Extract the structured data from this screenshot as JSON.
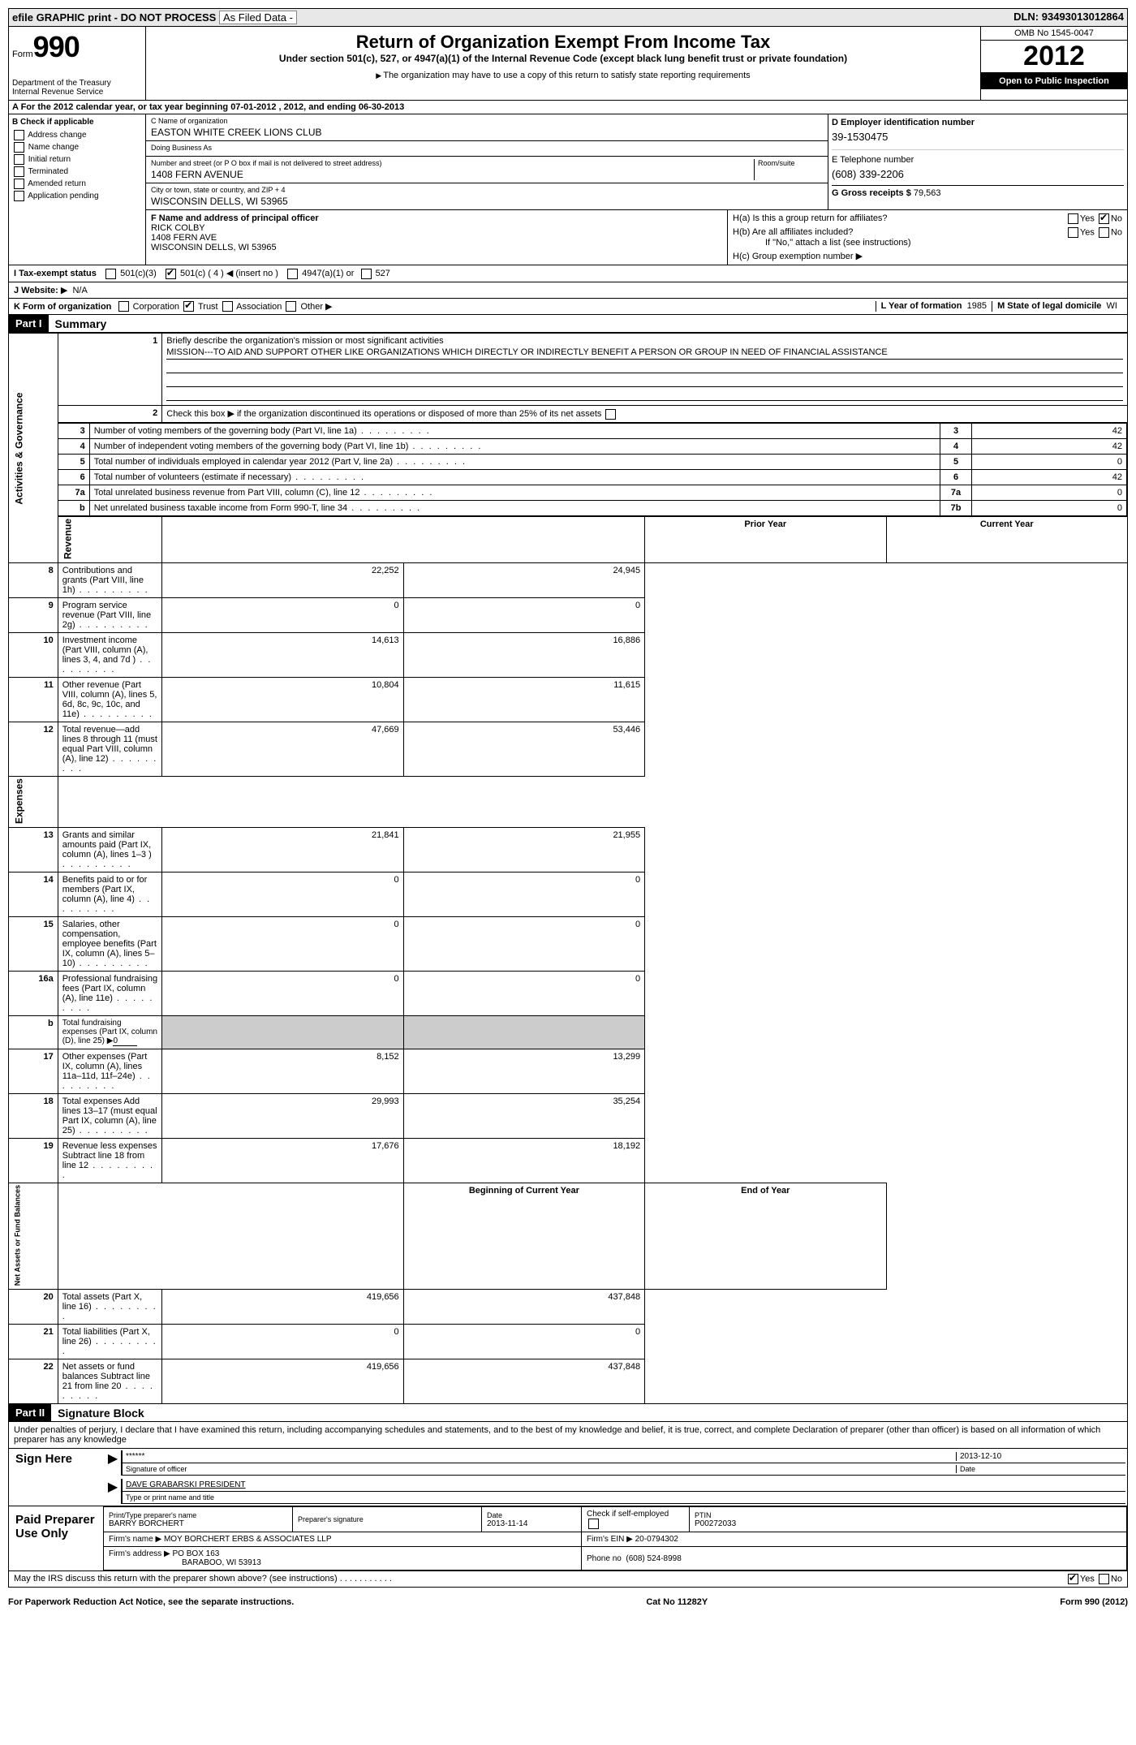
{
  "topbar": {
    "efile_label": "efile GRAPHIC print - DO NOT PROCESS",
    "asfiled_label": "As Filed Data -",
    "asfiled_value": "",
    "dln_label": "DLN:",
    "dln_value": "93493013012864"
  },
  "header": {
    "form_label": "Form",
    "form_number": "990",
    "dept": "Department of the Treasury",
    "irs": "Internal Revenue Service",
    "title": "Return of Organization Exempt From Income Tax",
    "subtitle": "Under section 501(c), 527, or 4947(a)(1) of the Internal Revenue Code (except black lung benefit trust or private foundation)",
    "note": "The organization may have to use a copy of this return to satisfy state reporting requirements",
    "omb": "OMB No 1545-0047",
    "year": "2012",
    "inspection": "Open to Public Inspection"
  },
  "rowA": "A  For the 2012 calendar year, or tax year beginning 07-01-2012    , 2012, and ending 06-30-2013",
  "sectionB": {
    "label": "B  Check if applicable",
    "items": [
      "Address change",
      "Name change",
      "Initial return",
      "Terminated",
      "Amended return",
      "Application pending"
    ]
  },
  "sectionC": {
    "name_label": "C Name of organization",
    "name": "EASTON WHITE CREEK LIONS CLUB",
    "dba_label": "Doing Business As",
    "dba": "",
    "street_label": "Number and street (or P O  box if mail is not delivered to street address)",
    "room_label": "Room/suite",
    "street": "1408 FERN AVENUE",
    "city_label": "City or town, state or country, and ZIP + 4",
    "city": "WISCONSIN DELLS, WI  53965"
  },
  "sectionD": {
    "label": "D Employer identification number",
    "value": "39-1530475"
  },
  "sectionE": {
    "label": "E Telephone number",
    "value": "(608) 339-2206"
  },
  "sectionG": {
    "label": "G Gross receipts $",
    "value": "79,563"
  },
  "sectionF": {
    "label": "F  Name and address of principal officer",
    "name": "RICK COLBY",
    "street": "1408 FERN AVE",
    "city": "WISCONSIN DELLS, WI  53965"
  },
  "sectionH": {
    "ha_label": "H(a)  Is this a group return for affiliates?",
    "ha_yes": false,
    "ha_no": true,
    "hb_label": "H(b)  Are all affiliates included?",
    "hb_note": "If \"No,\" attach a list  (see instructions)",
    "hc_label": "H(c)  Group exemption number"
  },
  "rowI": {
    "label": "I  Tax-exempt status",
    "c3": false,
    "c_other": true,
    "c_num": "4",
    "insert_note": "(insert no )",
    "opt_4947": "4947(a)(1) or",
    "opt_527": "527"
  },
  "rowJ": {
    "label": "J  Website:",
    "value": "N/A"
  },
  "rowK": {
    "label": "K Form of organization",
    "corp": false,
    "trust": true,
    "assoc": false,
    "other": false,
    "L_label": "L Year of formation",
    "L_value": "1985",
    "M_label": "M State of legal domicile",
    "M_value": "WI"
  },
  "partI": {
    "header": "Part I",
    "title": "Summary",
    "line1_label": "Briefly describe the organization's mission or most significant activities",
    "line1_text": "MISSION---TO AID AND SUPPORT OTHER LIKE ORGANIZATIONS WHICH DIRECTLY OR INDIRECTLY BENEFIT A PERSON OR GROUP IN NEED OF FINANCIAL ASSISTANCE",
    "line2": "Check this box ▶  if the organization discontinued its operations or disposed of more than 25% of its net assets",
    "gov_rows": [
      {
        "n": "3",
        "t": "Number of voting members of the governing body (Part VI, line 1a)",
        "c": "3",
        "v": "42"
      },
      {
        "n": "4",
        "t": "Number of independent voting members of the governing body (Part VI, line 1b)",
        "c": "4",
        "v": "42"
      },
      {
        "n": "5",
        "t": "Total number of individuals employed in calendar year 2012 (Part V, line 2a)",
        "c": "5",
        "v": "0"
      },
      {
        "n": "6",
        "t": "Total number of volunteers (estimate if necessary)",
        "c": "6",
        "v": "42"
      },
      {
        "n": "7a",
        "t": "Total unrelated business revenue from Part VIII, column (C), line 12",
        "c": "7a",
        "v": "0"
      },
      {
        "n": "b",
        "t": "Net unrelated business taxable income from Form 990-T, line 34",
        "c": "7b",
        "v": "0"
      }
    ],
    "col_headers": {
      "prior": "Prior Year",
      "current": "Current Year"
    },
    "revenue_label": "Revenue",
    "revenue_rows": [
      {
        "n": "8",
        "t": "Contributions and grants (Part VIII, line 1h)",
        "p": "22,252",
        "c": "24,945"
      },
      {
        "n": "9",
        "t": "Program service revenue (Part VIII, line 2g)",
        "p": "0",
        "c": "0"
      },
      {
        "n": "10",
        "t": "Investment income (Part VIII, column (A), lines 3, 4, and 7d )",
        "p": "14,613",
        "c": "16,886"
      },
      {
        "n": "11",
        "t": "Other revenue (Part VIII, column (A), lines 5, 6d, 8c, 9c, 10c, and 11e)",
        "p": "10,804",
        "c": "11,615"
      },
      {
        "n": "12",
        "t": "Total revenue—add lines 8 through 11 (must equal Part VIII, column (A), line 12)",
        "p": "47,669",
        "c": "53,446"
      }
    ],
    "expenses_label": "Expenses",
    "expenses_rows": [
      {
        "n": "13",
        "t": "Grants and similar amounts paid (Part IX, column (A), lines 1–3 )",
        "p": "21,841",
        "c": "21,955"
      },
      {
        "n": "14",
        "t": "Benefits paid to or for members (Part IX, column (A), line 4)",
        "p": "0",
        "c": "0"
      },
      {
        "n": "15",
        "t": "Salaries, other compensation, employee benefits (Part IX, column (A), lines 5–10)",
        "p": "0",
        "c": "0"
      },
      {
        "n": "16a",
        "t": "Professional fundraising fees (Part IX, column (A), line 11e)",
        "p": "0",
        "c": "0"
      },
      {
        "n": "b",
        "t": "Total fundraising expenses (Part IX, column (D), line 25) ▶",
        "sub": "0",
        "p": "",
        "c": ""
      },
      {
        "n": "17",
        "t": "Other expenses (Part IX, column (A), lines 11a–11d, 11f–24e)",
        "p": "8,152",
        "c": "13,299"
      },
      {
        "n": "18",
        "t": "Total expenses  Add lines 13–17 (must equal Part IX, column (A), line 25)",
        "p": "29,993",
        "c": "35,254"
      },
      {
        "n": "19",
        "t": "Revenue less expenses  Subtract line 18 from line 12",
        "p": "17,676",
        "c": "18,192"
      }
    ],
    "net_label": "Net Assets or Fund Balances",
    "net_headers": {
      "begin": "Beginning of Current Year",
      "end": "End of Year"
    },
    "net_rows": [
      {
        "n": "20",
        "t": "Total assets (Part X, line 16)",
        "p": "419,656",
        "c": "437,848"
      },
      {
        "n": "21",
        "t": "Total liabilities (Part X, line 26)",
        "p": "0",
        "c": "0"
      },
      {
        "n": "22",
        "t": "Net assets or fund balances  Subtract line 21 from line 20",
        "p": "419,656",
        "c": "437,848"
      }
    ]
  },
  "partII": {
    "header": "Part II",
    "title": "Signature Block",
    "perjury": "Under penalties of perjury, I declare that I have examined this return, including accompanying schedules and statements, and to the best of my knowledge and belief, it is true, correct, and complete  Declaration of preparer (other than officer) is based on all information of which preparer has any knowledge",
    "sign_here": "Sign Here",
    "sig_stars": "******",
    "sig_date": "2013-12-10",
    "sig_officer_label": "Signature of officer",
    "date_label": "Date",
    "officer_name": "DAVE GRABARSKI PRESIDENT",
    "officer_name_label": "Type or print name and title",
    "paid_label": "Paid Preparer Use Only",
    "prep_name_label": "Print/Type preparer's name",
    "prep_name": "BARRY BORCHERT",
    "prep_sig_label": "Preparer's signature",
    "prep_date": "2013-11-14",
    "self_emp_label": "Check  if self-employed",
    "ptin_label": "PTIN",
    "ptin": "P00272033",
    "firm_name_label": "Firm's name  ▶",
    "firm_name": "MOY BORCHERT ERBS & ASSOCIATES LLP",
    "firm_ein_label": "Firm's EIN ▶",
    "firm_ein": "20-0794302",
    "firm_addr_label": "Firm's address ▶",
    "firm_addr1": "PO BOX 163",
    "firm_addr2": "BARABOO, WI  53913",
    "phone_label": "Phone no",
    "phone": "(608) 524-8998",
    "discuss": "May the IRS discuss this return with the preparer shown above? (see instructions)",
    "discuss_yes": true,
    "discuss_no": false
  },
  "footer": {
    "left": "For Paperwork Reduction Act Notice, see the separate instructions.",
    "mid": "Cat No  11282Y",
    "right": "Form 990 (2012)"
  }
}
